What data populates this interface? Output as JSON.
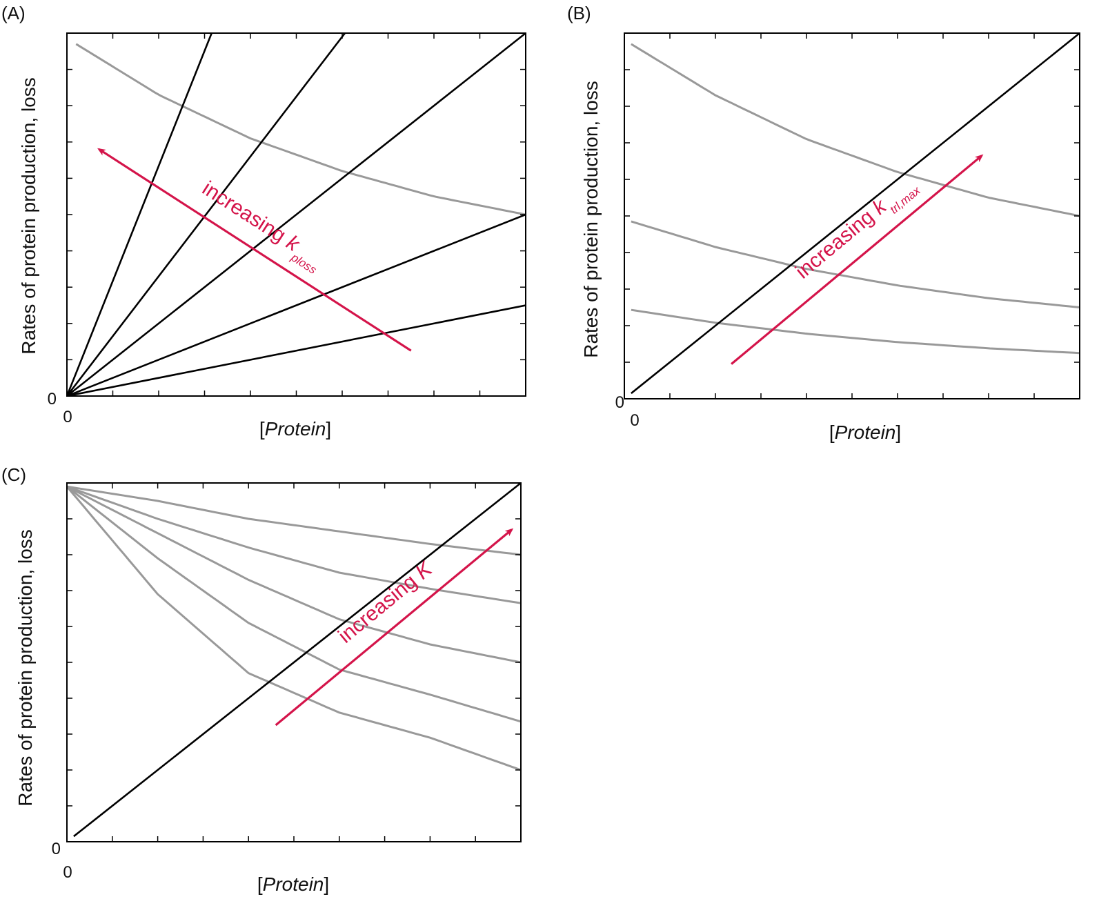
{
  "figure": {
    "colors": {
      "loss_line": "#000000",
      "production_curve": "#999999",
      "annotation": "#d4144a",
      "axis": "#000000"
    }
  },
  "chart_data": [
    {
      "type": "line",
      "panel_label": "(A)",
      "xlabel_open": "[",
      "xlabel_var": "Protein",
      "xlabel_close": "]",
      "ylabel": "Rates of protein production, loss",
      "x_tick_label": "0",
      "y_tick_label": "0",
      "xlim": [
        0,
        10
      ],
      "ylim": [
        0,
        10
      ],
      "x_ticks": [
        0,
        1,
        2,
        3,
        4,
        5,
        6,
        7,
        8,
        9,
        10
      ],
      "y_ticks": [
        0,
        1,
        2,
        3,
        4,
        5,
        6,
        7,
        8,
        9,
        10
      ],
      "grid": false,
      "loss_lines": [
        {
          "slope": 0.25,
          "x_from": 0
        },
        {
          "slope": 0.5,
          "x_from": 0
        },
        {
          "slope": 1.0,
          "x_from": 0
        },
        {
          "slope": 1.65,
          "x_from": 0
        },
        {
          "slope": 3.17,
          "x_from": 0
        }
      ],
      "production_curves": [
        {
          "x_from": 0.2,
          "x_to": 10,
          "points": [
            [
              0.2,
              9.7
            ],
            [
              2,
              8.3
            ],
            [
              4,
              7.1
            ],
            [
              6,
              6.2
            ],
            [
              8,
              5.5
            ],
            [
              10,
              5.0
            ]
          ]
        }
      ],
      "annotation": {
        "text": "increasing ",
        "var": "k",
        "subscript": "ploss",
        "arrow_from": [
          7.5,
          1.25
        ],
        "arrow_to": [
          0.7,
          6.8
        ]
      }
    },
    {
      "type": "line",
      "panel_label": "(B)",
      "xlabel_open": "[",
      "xlabel_var": "Protein",
      "xlabel_close": "]",
      "ylabel": "Rates of protein production, loss",
      "x_tick_label": "0",
      "y_tick_label": "0",
      "xlim": [
        0,
        10
      ],
      "ylim": [
        0,
        10
      ],
      "x_ticks": [
        0,
        1,
        2,
        3,
        4,
        5,
        6,
        7,
        8,
        9,
        10
      ],
      "y_ticks": [
        0,
        1,
        2,
        3,
        4,
        5,
        6,
        7,
        8,
        9,
        10
      ],
      "grid": false,
      "loss_lines": [
        {
          "slope": 1.0,
          "x_from": 0.15
        }
      ],
      "production_curves": [
        {
          "x_from": 0.15,
          "x_to": 10,
          "points": [
            [
              0.15,
              9.7
            ],
            [
              2,
              8.3
            ],
            [
              4,
              7.1
            ],
            [
              6,
              6.2
            ],
            [
              8,
              5.5
            ],
            [
              10,
              5.0
            ]
          ]
        },
        {
          "x_from": 0.15,
          "x_to": 10,
          "points": [
            [
              0.15,
              4.85
            ],
            [
              2,
              4.15
            ],
            [
              4,
              3.55
            ],
            [
              6,
              3.1
            ],
            [
              8,
              2.75
            ],
            [
              10,
              2.5
            ]
          ]
        },
        {
          "x_from": 0.15,
          "x_to": 10,
          "points": [
            [
              0.15,
              2.43
            ],
            [
              2,
              2.08
            ],
            [
              4,
              1.78
            ],
            [
              6,
              1.55
            ],
            [
              8,
              1.38
            ],
            [
              10,
              1.25
            ]
          ]
        }
      ],
      "annotation": {
        "text": "increasing ",
        "var": "k",
        "subscript": "trl,max",
        "arrow_from": [
          2.35,
          0.95
        ],
        "arrow_to": [
          7.85,
          6.65
        ]
      }
    },
    {
      "type": "line",
      "panel_label": "(C)",
      "xlabel_open": "[",
      "xlabel_var": "Protein",
      "xlabel_close": "]",
      "ylabel": "Rates of protein production, loss",
      "x_tick_label": "0",
      "y_tick_label": "0",
      "xlim": [
        0,
        10
      ],
      "ylim": [
        0,
        10
      ],
      "x_ticks": [
        0,
        1,
        2,
        3,
        4,
        5,
        6,
        7,
        8,
        9,
        10
      ],
      "y_ticks": [
        0,
        1,
        2,
        3,
        4,
        5,
        6,
        7,
        8,
        9,
        10
      ],
      "grid": false,
      "loss_lines": [
        {
          "slope": 1.0,
          "x_from": 0.15
        }
      ],
      "production_curves": [
        {
          "x_from": 0,
          "x_to": 10,
          "points": [
            [
              0,
              9.9
            ],
            [
              2,
              6.9
            ],
            [
              4,
              4.7
            ],
            [
              6,
              3.6
            ],
            [
              8,
              2.9
            ],
            [
              10,
              2.0
            ]
          ]
        },
        {
          "x_from": 0,
          "x_to": 10,
          "points": [
            [
              0,
              9.9
            ],
            [
              2,
              7.9
            ],
            [
              4,
              6.1
            ],
            [
              6,
              4.8
            ],
            [
              8,
              4.1
            ],
            [
              10,
              3.35
            ]
          ]
        },
        {
          "x_from": 0,
          "x_to": 10,
          "points": [
            [
              0,
              9.9
            ],
            [
              2,
              8.6
            ],
            [
              4,
              7.3
            ],
            [
              6,
              6.2
            ],
            [
              8,
              5.5
            ],
            [
              10,
              5.0
            ]
          ]
        },
        {
          "x_from": 0,
          "x_to": 10,
          "points": [
            [
              0,
              9.9
            ],
            [
              2,
              9.0
            ],
            [
              4,
              8.2
            ],
            [
              6,
              7.5
            ],
            [
              8,
              7.05
            ],
            [
              10,
              6.65
            ]
          ]
        },
        {
          "x_from": 0,
          "x_to": 10,
          "points": [
            [
              0,
              9.9
            ],
            [
              2,
              9.5
            ],
            [
              4,
              9.0
            ],
            [
              6,
              8.65
            ],
            [
              8,
              8.3
            ],
            [
              10,
              8.0
            ]
          ]
        }
      ],
      "annotation": {
        "text": "increasing ",
        "var": "K",
        "subscript": "",
        "arrow_from": [
          4.6,
          3.25
        ],
        "arrow_to": [
          9.8,
          8.7
        ]
      }
    }
  ]
}
